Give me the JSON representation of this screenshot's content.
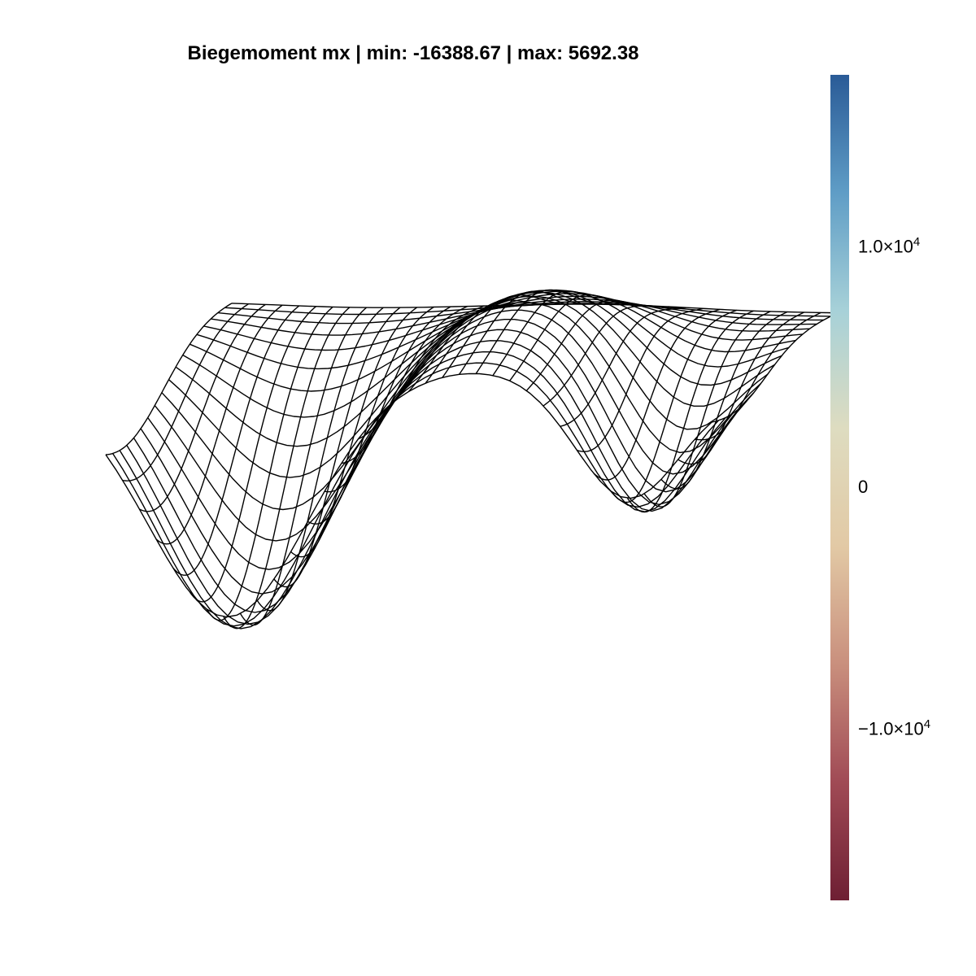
{
  "chart_data": {
    "type": "surface",
    "title": "Biegemoment mx | min: -16388.67 | max: 5692.38",
    "value_min": -16388.67,
    "value_max": 5692.38,
    "grid": false,
    "axes_visible": false,
    "colorbar": {
      "position": "right",
      "range": [
        -17100,
        17100
      ],
      "colormap": "balance (red-beige-blue)",
      "colors": [
        "#6e1f33",
        "#a04a55",
        "#c98f7d",
        "#e2c9a5",
        "#dedcc0",
        "#a7d1d8",
        "#5f9dc6",
        "#2a5b97"
      ],
      "ticks": [
        {
          "value": 10000,
          "label_mantissa": "1.0×10",
          "label_exp": "4"
        },
        {
          "value": 0,
          "label_mantissa": "0",
          "label_exp": ""
        },
        {
          "value": -10000,
          "label_mantissa": "−1.0×10",
          "label_exp": "4"
        }
      ]
    },
    "surface": {
      "style": "wireframe",
      "line_color": "#000000",
      "grid_size": [
        36,
        18
      ],
      "description_values": "bending moment field, strong negative trough near the front-left corner, secondary trough at the front-right, positive ridge in between"
    }
  }
}
